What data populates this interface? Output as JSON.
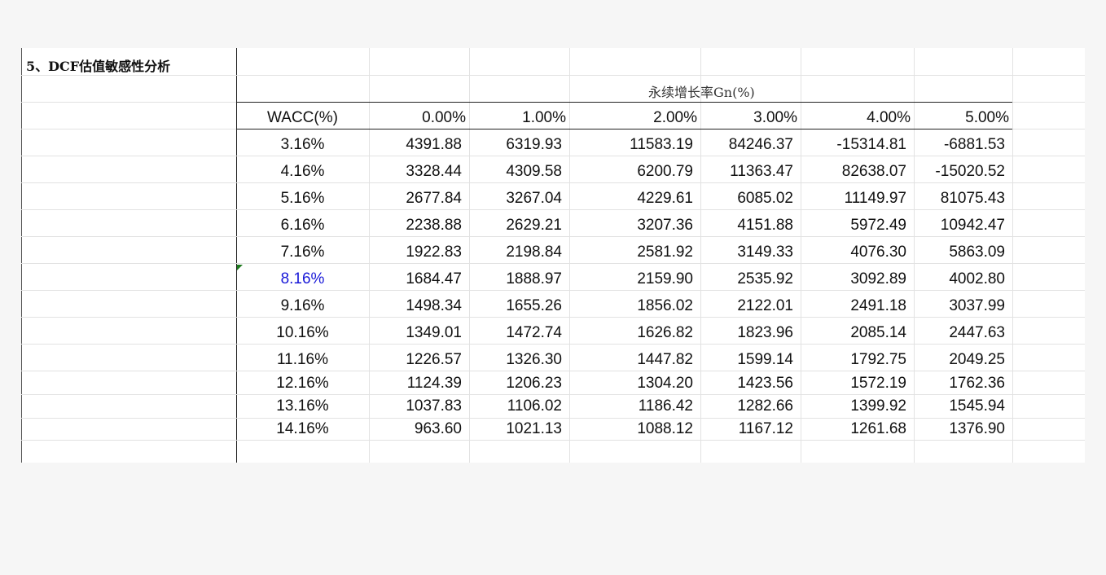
{
  "section_title": "5、DCF估值敏感性分析",
  "table_title": "永续增长率Gn(%)",
  "header": {
    "wacc_label": "WACC(%)",
    "growth_rates": [
      "0.00%",
      "1.00%",
      "2.00%",
      "3.00%",
      "4.00%",
      "5.00%"
    ]
  },
  "rows": [
    {
      "wacc": "3.16%",
      "values": [
        "4391.88",
        "6319.93",
        "11583.19",
        "84246.37",
        "-15314.81",
        "-6881.53"
      ]
    },
    {
      "wacc": "4.16%",
      "values": [
        "3328.44",
        "4309.58",
        "6200.79",
        "11363.47",
        "82638.07",
        "-15020.52"
      ]
    },
    {
      "wacc": "5.16%",
      "values": [
        "2677.84",
        "3267.04",
        "4229.61",
        "6085.02",
        "11149.97",
        "81075.43"
      ]
    },
    {
      "wacc": "6.16%",
      "values": [
        "2238.88",
        "2629.21",
        "3207.36",
        "4151.88",
        "5972.49",
        "10942.47"
      ]
    },
    {
      "wacc": "7.16%",
      "values": [
        "1922.83",
        "2198.84",
        "2581.92",
        "3149.33",
        "4076.30",
        "5863.09"
      ]
    },
    {
      "wacc": "8.16%",
      "values": [
        "1684.47",
        "1888.97",
        "2159.90",
        "2535.92",
        "3092.89",
        "4002.80"
      ]
    },
    {
      "wacc": "9.16%",
      "values": [
        "1498.34",
        "1655.26",
        "1856.02",
        "2122.01",
        "2491.18",
        "3037.99"
      ]
    },
    {
      "wacc": "10.16%",
      "values": [
        "1349.01",
        "1472.74",
        "1626.82",
        "1823.96",
        "2085.14",
        "2447.63"
      ]
    },
    {
      "wacc": "11.16%",
      "values": [
        "1226.57",
        "1326.30",
        "1447.82",
        "1599.14",
        "1792.75",
        "2049.25"
      ]
    },
    {
      "wacc": "12.16%",
      "values": [
        "1124.39",
        "1206.23",
        "1304.20",
        "1423.56",
        "1572.19",
        "1762.36"
      ]
    },
    {
      "wacc": "13.16%",
      "values": [
        "1037.83",
        "1106.02",
        "1186.42",
        "1282.66",
        "1399.92",
        "1545.94"
      ]
    },
    {
      "wacc": "14.16%",
      "values": [
        "963.60",
        "1021.13",
        "1088.12",
        "1167.12",
        "1261.68",
        "1376.90"
      ]
    }
  ],
  "highlight_color": "#1919d8"
}
